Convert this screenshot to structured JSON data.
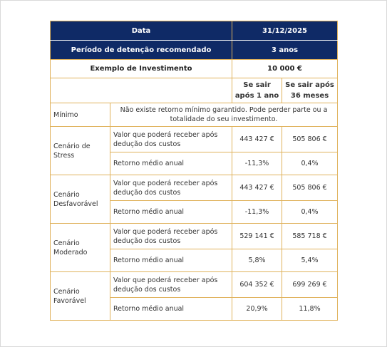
{
  "header": {
    "date_label": "Data",
    "date_value": "31/12/2025",
    "period_label": "Período de detenção recomendado",
    "period_value": "3 anos"
  },
  "investment": {
    "label": "Exemplo de Investimento",
    "value": "10 000 €"
  },
  "columns": {
    "col1": "Se sair após 1 ano",
    "col2": "Se sair após 36 meses"
  },
  "minimum": {
    "label": "Mínimo",
    "text": "Não existe retorno mínimo garantido. Pode perder parte ou a totalidade do seu investimento."
  },
  "scenarios": [
    {
      "name": "Cenário de Stress",
      "row1_label": "Valor que poderá receber após dedução dos custos",
      "row1_v1": "443 427 €",
      "row1_v2": "505 806 €",
      "row2_label": "Retorno médio anual",
      "row2_v1": "-11,3%",
      "row2_v2": "0,4%"
    },
    {
      "name": "Cenário Desfavorável",
      "row1_label": "Valor que poderá receber após dedução dos custos",
      "row1_v1": "443 427 €",
      "row1_v2": "505 806 €",
      "row2_label": "Retorno médio anual",
      "row2_v1": "-11,3%",
      "row2_v2": "0,4%"
    },
    {
      "name": "Cenário Moderado",
      "row1_label": "Valor que poderá receber após dedução dos custos",
      "row1_v1": "529 141 €",
      "row1_v2": "585 718 €",
      "row2_label": "Retorno médio anual",
      "row2_v1": "5,8%",
      "row2_v2": "5,4%"
    },
    {
      "name": "Cenário Favorável",
      "row1_label": "Valor que poderá receber após dedução dos custos",
      "row1_v1": "604 352 €",
      "row1_v2": "699 269 €",
      "row2_label": "Retorno médio anual",
      "row2_v1": "20,9%",
      "row2_v2": "11,8%"
    }
  ],
  "colors": {
    "header_bg": "#0f2a66",
    "border": "#e0b25c"
  }
}
